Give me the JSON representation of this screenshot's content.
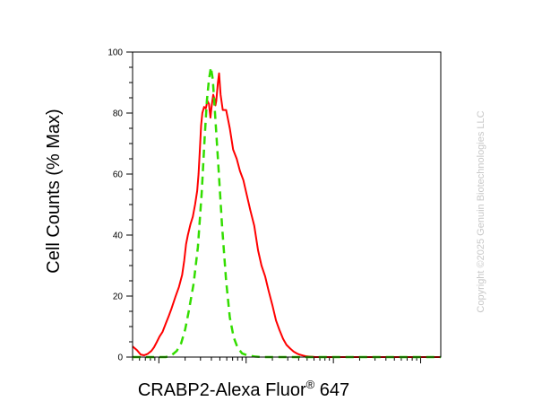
{
  "chart_data": {
    "type": "line",
    "title": "",
    "xlabel": "CRABP2-Alexa Fluor",
    "xlabel_sup": "®",
    "xlabel_suffix": " 647",
    "ylabel": "Cell Counts (% Max)",
    "xscale": "log",
    "xlim": [
      0.5,
      1700
    ],
    "ylim": [
      0,
      100
    ],
    "yticks": [
      0,
      20,
      40,
      60,
      80,
      100
    ],
    "ytick_labels": [
      "0",
      "20",
      "40",
      "60",
      "80",
      "100"
    ],
    "grid": false,
    "legend": "none",
    "watermark": "Copyright ©2025 Genuin Biotechnologies LLC",
    "series": [
      {
        "color": "#ff0000",
        "style": "solid",
        "x": [
          0.5,
          0.56,
          0.62,
          0.68,
          0.74,
          0.82,
          0.88,
          0.95,
          1.02,
          1.1,
          1.2,
          1.3,
          1.4,
          1.55,
          1.7,
          1.85,
          1.95,
          2.05,
          2.15,
          2.3,
          2.45,
          2.6,
          2.75,
          2.85,
          2.95,
          3.05,
          3.15,
          3.3,
          3.45,
          3.6,
          3.75,
          3.9,
          4.0,
          4.1,
          4.2,
          4.35,
          4.45,
          4.55,
          4.65,
          4.75,
          4.9,
          5.1,
          5.4,
          5.9,
          6.5,
          7.1,
          7.8,
          8.5,
          9.3,
          10.2,
          11.2,
          12.4,
          13.7,
          15,
          16.5,
          18,
          20,
          22,
          24,
          26.5,
          29,
          32,
          35,
          38,
          41,
          45,
          48,
          52,
          57,
          62,
          70,
          80,
          90,
          100,
          120,
          150,
          200,
          300,
          500,
          800,
          1200,
          1700
        ],
        "y": [
          3.5,
          2.3,
          0.8,
          0.6,
          1.0,
          2.0,
          3.2,
          5.0,
          6.8,
          8.2,
          11.0,
          13.5,
          16.0,
          19.8,
          23.0,
          27.0,
          31.5,
          37.0,
          40.0,
          43.5,
          46.0,
          50.0,
          54.5,
          60.0,
          68.0,
          76.0,
          80.0,
          82.0,
          81.5,
          84.0,
          83.0,
          78.5,
          81.5,
          84.0,
          86.0,
          84.5,
          82.5,
          84.0,
          87.0,
          90.0,
          93.0,
          86.0,
          81.0,
          81.0,
          75.0,
          68.0,
          65.0,
          61.0,
          58.0,
          53.0,
          48.0,
          43.0,
          35.0,
          30.0,
          26.5,
          22.0,
          17.0,
          12.0,
          9.0,
          6.0,
          4.0,
          2.8,
          1.8,
          1.2,
          0.8,
          0.5,
          0.3,
          0.2,
          0.1,
          0,
          0,
          0,
          0,
          0,
          0,
          0,
          0,
          0,
          0,
          0,
          0,
          0
        ]
      },
      {
        "color": "#33dd00",
        "style": "dashed",
        "x": [
          0.5,
          0.9,
          1.2,
          1.4,
          1.6,
          1.8,
          2.0,
          2.2,
          2.5,
          2.8,
          3.1,
          3.35,
          3.55,
          3.75,
          3.95,
          4.15,
          4.4,
          4.8,
          5.3,
          5.9,
          6.5,
          7.2,
          8.0,
          9.0,
          10.5,
          12.5,
          15,
          20,
          30,
          50,
          100,
          1700
        ],
        "y": [
          0,
          0,
          0,
          0.6,
          2.0,
          4.5,
          9.0,
          15.0,
          24.0,
          36.0,
          54.0,
          72.0,
          84.0,
          91.0,
          95.0,
          91.0,
          80.0,
          63.0,
          43.0,
          25.0,
          13.0,
          6.5,
          3.0,
          1.2,
          0.5,
          0.2,
          0,
          0,
          0,
          0,
          0,
          0
        ]
      }
    ]
  }
}
